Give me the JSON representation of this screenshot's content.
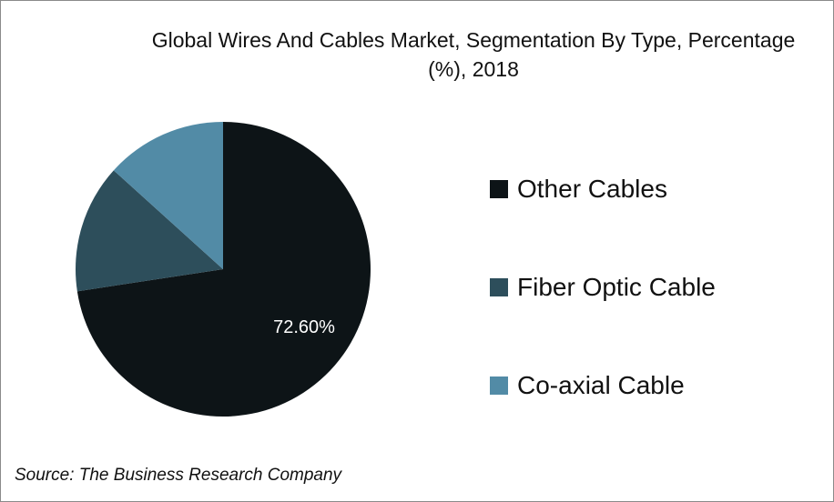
{
  "chart_data": {
    "type": "pie",
    "title": "Global Wires And Cables Market, Segmentation By Type, Percentage (%), 2018",
    "categories": [
      "Other Cables",
      "Fiber Optic Cable",
      "Co-axial Cable"
    ],
    "values": [
      72.6,
      14.1,
      13.3
    ],
    "data_labels": [
      "72.60%",
      "",
      ""
    ],
    "colors": [
      "#0d1417",
      "#2d4e5b",
      "#528ba6"
    ],
    "legend_position": "right"
  },
  "source": "Source: The Business Research Company"
}
